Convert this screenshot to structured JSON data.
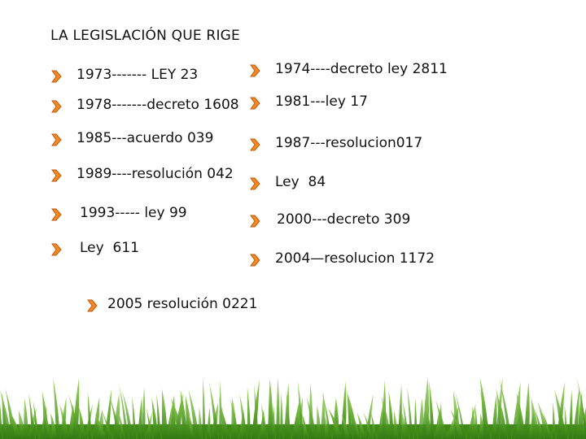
{
  "title": "LA LEGISLACIÓN  QUE RIGE",
  "bullet_icon": "orange-arrow-bullet-icon",
  "colors": {
    "bullet_fill": "#f08a24",
    "bullet_stroke": "#c25a10",
    "grass": "#4f9a1d"
  },
  "left": [
    "1973------- LEY 23",
    "1978-------decreto 1608",
    "1985---acuerdo 039",
    "1989----resolución 042",
    "1993----- ley 99",
    "Ley  611",
    "2005 resolución 0221"
  ],
  "right": [
    "1974----decreto ley 2811",
    "1981---ley 17",
    "1987---resolucion017",
    "Ley  84",
    "2000---decreto 309",
    "2004—resolucion 1172"
  ]
}
